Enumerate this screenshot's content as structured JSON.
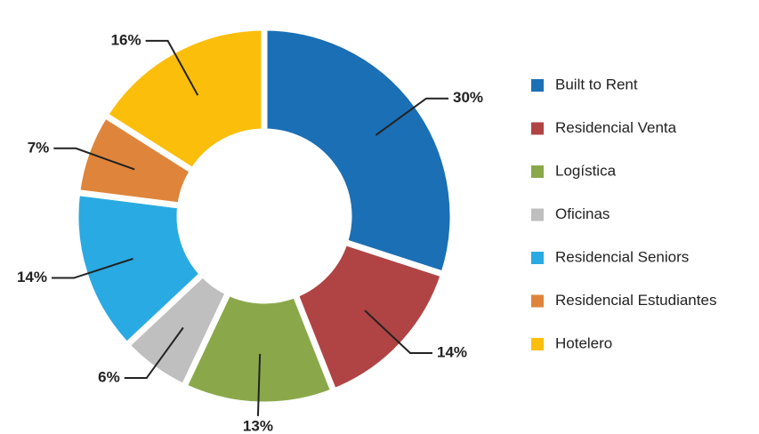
{
  "chart_data": {
    "type": "donut",
    "categories": [
      "Built to Rent",
      "Residencial Venta",
      "Logística",
      "Oficinas",
      "Residencial Seniors",
      "Residencial Estudiantes",
      "Hotelero"
    ],
    "values": [
      30,
      14,
      13,
      6,
      14,
      7,
      16
    ],
    "value_labels": [
      "30%",
      "14%",
      "13%",
      "6%",
      "14%",
      "7%",
      "16%"
    ],
    "colors": [
      "#1b6fb5",
      "#b04444",
      "#8aa84a",
      "#bfbfbf",
      "#2aaae2",
      "#de853b",
      "#fbbe0a"
    ],
    "legend": "right"
  }
}
